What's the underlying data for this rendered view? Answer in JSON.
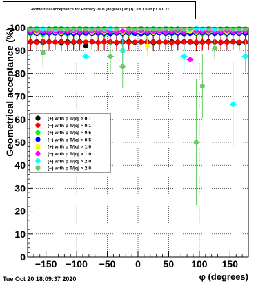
{
  "title": "Geometrical acceptance for Primary vs φ (degrees) at | η | <= 1.0 at pT > 0.11",
  "timestamp": "Tue Oct 20 18:09:37 2020",
  "chart_data": {
    "type": "scatter",
    "title": "Geometrical acceptance for Primary vs φ (degrees) at | η | <= 1.0 at pT > 0.11",
    "xlabel": "φ (degrees)",
    "ylabel": "Geometrical acceptance (%)",
    "xlim": [
      -180,
      180
    ],
    "ylim": [
      0,
      100
    ],
    "xticks": [
      -150,
      -100,
      -50,
      0,
      50,
      100,
      150
    ],
    "xtick_labels": [
      "−150",
      "−100",
      "−50",
      "0",
      "50",
      "100",
      "150"
    ],
    "yticks": [
      0,
      10,
      20,
      30,
      40,
      50,
      60,
      70,
      80,
      90,
      100
    ],
    "ytick_labels": [
      "0",
      "10",
      "20",
      "30",
      "40",
      "50",
      "60",
      "70",
      "80",
      "90",
      "100"
    ],
    "grid": true,
    "legend_position": "left-middle",
    "series": [
      {
        "name": "(+) with p T/|q| > 0.1",
        "color": "#000000",
        "x": [
          -175,
          -165,
          -155,
          -145,
          -135,
          -125,
          -115,
          -105,
          -95,
          -85,
          -75,
          -65,
          -55,
          -45,
          -35,
          -25,
          -15,
          -5,
          5,
          15,
          25,
          35,
          45,
          55,
          65,
          75,
          85,
          95,
          105,
          115,
          125,
          135,
          145,
          155,
          165,
          175
        ],
        "y": [
          93.6,
          93.8,
          93.5,
          93.9,
          93.7,
          93.4,
          93.8,
          93.6,
          93.9,
          92.0,
          93.7,
          93.5,
          93.8,
          93.6,
          93.4,
          93.7,
          93.9,
          93.5,
          93.6,
          93.8,
          93.4,
          93.7,
          93.6,
          93.9,
          93.5,
          93.8,
          93.6,
          93.4,
          93.7,
          93.9,
          93.6,
          93.5,
          93.8,
          93.7,
          93.4,
          93.6
        ]
      },
      {
        "name": "(−) with p T/|q| > 0.1",
        "color": "#ff0000",
        "x": [
          -175,
          -165,
          -155,
          -145,
          -135,
          -125,
          -115,
          -105,
          -95,
          -85,
          -75,
          -65,
          -55,
          -45,
          -35,
          -25,
          -15,
          -5,
          5,
          15,
          25,
          35,
          45,
          55,
          65,
          75,
          85,
          95,
          105,
          115,
          125,
          135,
          145,
          155,
          165,
          175
        ],
        "y": [
          93.9,
          93.5,
          94.0,
          93.7,
          93.6,
          93.9,
          93.4,
          93.8,
          93.6,
          93.7,
          93.9,
          93.5,
          93.7,
          93.8,
          93.6,
          93.9,
          93.5,
          93.7,
          93.8,
          93.5,
          93.9,
          93.6,
          93.7,
          93.4,
          93.8,
          93.6,
          93.9,
          93.7,
          93.5,
          93.6,
          93.8,
          93.7,
          93.5,
          93.9,
          93.7,
          93.8
        ]
      },
      {
        "name": "(+) with p T/|q| > 0.5",
        "color": "#00ff00",
        "x": [
          -175,
          -165,
          -155,
          -145,
          -135,
          -125,
          -115,
          -105,
          -95,
          -85,
          -75,
          -65,
          -55,
          -45,
          -35,
          -25,
          -15,
          -5,
          5,
          15,
          25,
          35,
          45,
          55,
          65,
          75,
          85,
          95,
          105,
          115,
          125,
          135,
          145,
          155,
          165,
          175
        ],
        "y": [
          97.3,
          97.6,
          97.1,
          97.5,
          97.4,
          97.7,
          97.2,
          97.5,
          97.6,
          97.3,
          97.5,
          97.4,
          97.2,
          97.6,
          97.5,
          97.3,
          97.4,
          97.6,
          97.5,
          97.2,
          97.4,
          97.6,
          97.5,
          97.3,
          97.4,
          97.6,
          97.5,
          97.4,
          97.3,
          97.6,
          97.5,
          97.4,
          97.2,
          97.5,
          97.6,
          97.4
        ]
      },
      {
        "name": "(−) with p T/|q| > 0.5",
        "color": "#0000ff",
        "x": [
          -175,
          -165,
          -155,
          -145,
          -135,
          -125,
          -115,
          -105,
          -95,
          -85,
          -75,
          -65,
          -55,
          -45,
          -35,
          -25,
          -15,
          -5,
          5,
          15,
          25,
          35,
          45,
          55,
          65,
          75,
          85,
          95,
          105,
          115,
          125,
          135,
          145,
          155,
          165,
          175
        ],
        "y": [
          97.8,
          97.4,
          97.6,
          97.5,
          97.7,
          97.3,
          97.6,
          97.4,
          97.5,
          97.7,
          97.4,
          97.6,
          97.5,
          97.3,
          97.6,
          97.5,
          97.7,
          97.4,
          97.3,
          97.6,
          97.5,
          97.7,
          97.4,
          97.6,
          97.5,
          97.3,
          97.4,
          97.6,
          97.7,
          97.5,
          97.4,
          97.6,
          97.5,
          97.7,
          97.4,
          97.5
        ]
      },
      {
        "name": "(+) with p T/|q| > 1.0",
        "color": "#ffff00",
        "x": [
          -175,
          -165,
          -155,
          -145,
          -135,
          -125,
          -115,
          -105,
          -95,
          -85,
          -75,
          -65,
          -55,
          -45,
          -35,
          -25,
          -15,
          -5,
          5,
          15,
          25,
          35,
          45,
          55,
          65,
          75,
          85,
          95,
          105,
          115,
          125,
          135,
          145,
          155,
          165,
          175
        ],
        "y": [
          98.4,
          98.1,
          98.5,
          98.2,
          98.3,
          98.0,
          98.4,
          98.3,
          98.2,
          98.4,
          98.1,
          98.3,
          98.2,
          98.4,
          98.3,
          98.1,
          98.2,
          98.4,
          98.3,
          92.0,
          98.1,
          98.3,
          98.2,
          98.4,
          98.3,
          98.2,
          98.4,
          98.1,
          98.3,
          98.2,
          98.4,
          98.3,
          98.1,
          98.3,
          98.2,
          98.4
        ]
      },
      {
        "name": "(−) with p T/|q| > 1.0",
        "color": "#ff00ff",
        "x": [
          -175,
          -165,
          -155,
          -145,
          -135,
          -125,
          -115,
          -105,
          -95,
          -85,
          -75,
          -65,
          -55,
          -45,
          -35,
          -25,
          -15,
          -5,
          5,
          15,
          25,
          35,
          45,
          55,
          65,
          75,
          85,
          95,
          105,
          115,
          125,
          135,
          145,
          155,
          165,
          175
        ],
        "y": [
          98.3,
          98.6,
          98.4,
          98.2,
          98.5,
          98.3,
          98.4,
          98.6,
          98.2,
          98.4,
          98.5,
          98.3,
          98.6,
          98.4,
          98.2,
          98.5,
          98.3,
          98.4,
          98.6,
          98.2,
          98.4,
          98.5,
          98.3,
          98.4,
          98.6,
          98.2,
          86.0,
          98.4,
          98.3,
          98.5,
          98.4,
          98.2,
          98.6,
          98.3,
          98.4,
          98.5
        ]
      },
      {
        "name": "(+) with p T/|q| > 2.0",
        "color": "#00ffff",
        "x": [
          -175,
          -165,
          -155,
          -145,
          -135,
          -125,
          -115,
          -105,
          -95,
          -85,
          -75,
          -65,
          -55,
          -45,
          -35,
          -25,
          -15,
          -5,
          5,
          15,
          25,
          35,
          45,
          55,
          65,
          75,
          85,
          95,
          105,
          115,
          125,
          135,
          145,
          155,
          165,
          175
        ],
        "y": [
          99.3,
          99.6,
          99.4,
          99.5,
          99.2,
          99.6,
          99.4,
          99.3,
          99.5,
          87.5,
          99.4,
          99.6,
          99.3,
          99.5,
          99.4,
          90.0,
          99.5,
          99.3,
          99.6,
          99.4,
          99.5,
          99.3,
          99.6,
          99.4,
          99.5,
          87.5,
          99.3,
          99.6,
          99.4,
          99.5,
          99.3,
          99.4,
          99.6,
          66.5,
          99.5,
          87.5
        ]
      },
      {
        "name": "(−) with p T/|q| > 2.0",
        "color": "#66cc66",
        "x": [
          -175,
          -165,
          -155,
          -145,
          -135,
          -125,
          -115,
          -105,
          -95,
          -85,
          -75,
          -65,
          -55,
          -45,
          -35,
          -25,
          -15,
          -5,
          5,
          15,
          25,
          35,
          45,
          55,
          65,
          75,
          85,
          95,
          105,
          115,
          125,
          135,
          145,
          155,
          165,
          175
        ],
        "y": [
          99.5,
          99.3,
          89.0,
          99.4,
          99.6,
          99.5,
          99.3,
          99.4,
          99.6,
          99.5,
          99.3,
          99.4,
          99.6,
          87.5,
          99.4,
          83.0,
          99.5,
          99.3,
          99.6,
          99.4,
          99.5,
          99.3,
          99.6,
          99.4,
          99.5,
          99.3,
          99.4,
          50.0,
          74.5,
          99.6,
          91.0,
          99.4,
          99.5,
          99.3,
          99.6,
          99.4
        ]
      }
    ]
  }
}
